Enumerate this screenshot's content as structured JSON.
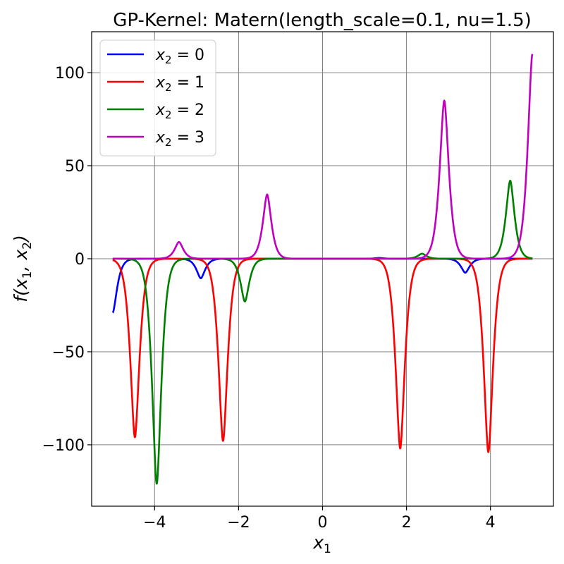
{
  "chart_data": {
    "type": "line",
    "title": "GP-Kernel: Matern(length_scale=0.1, nu=1.5)",
    "xlabel": {
      "base": "x",
      "sub": "1"
    },
    "ylabel": {
      "prefix": "f(x",
      "sub1": "1",
      "mid": ", x",
      "sub2": "2",
      "suffix": ")"
    },
    "xlim": [
      -5.5,
      5.5
    ],
    "ylim": [
      -133,
      122
    ],
    "xticks": [
      -4,
      -2,
      0,
      2,
      4
    ],
    "xtick_labels": [
      "−4",
      "−2",
      "0",
      "2",
      "4"
    ],
    "yticks": [
      -100,
      -50,
      0,
      50,
      100
    ],
    "ytick_labels": [
      "−100",
      "−50",
      "0",
      "50",
      "100"
    ],
    "grid": true,
    "legend_position": "top-left",
    "x_domain": [
      -5,
      5
    ],
    "series": [
      {
        "name": "x₂ = 0",
        "legend": {
          "base": "x",
          "sub": "2",
          "rest": " = 0"
        },
        "color": "#0000ff",
        "peaks": [
          {
            "x": -5.0,
            "y": -29,
            "width": 0.07
          },
          {
            "x": -2.9,
            "y": -10.5,
            "width": 0.07
          },
          {
            "x": 3.4,
            "y": -7.5,
            "width": 0.07
          },
          {
            "x": 1.35,
            "y": 0.4,
            "width": 0.07
          }
        ]
      },
      {
        "name": "x₂ = 1",
        "legend": {
          "base": "x",
          "sub": "2",
          "rest": " = 1"
        },
        "color": "#ff0000",
        "peaks": [
          {
            "x": -4.47,
            "y": -96,
            "width": 0.075
          },
          {
            "x": -2.37,
            "y": -98,
            "width": 0.075
          },
          {
            "x": 1.85,
            "y": -102,
            "width": 0.075
          },
          {
            "x": 3.95,
            "y": -104,
            "width": 0.075
          }
        ]
      },
      {
        "name": "x₂ = 2",
        "legend": {
          "base": "x",
          "sub": "2",
          "rest": " = 2"
        },
        "color": "#008000",
        "peaks": [
          {
            "x": -3.95,
            "y": -121,
            "width": 0.075
          },
          {
            "x": -1.85,
            "y": -23,
            "width": 0.07
          },
          {
            "x": 2.37,
            "y": 2.7,
            "width": 0.07
          },
          {
            "x": 4.47,
            "y": 42,
            "width": 0.07
          }
        ]
      },
      {
        "name": "x₂ = 3",
        "legend": {
          "base": "x",
          "sub": "2",
          "rest": " = 3"
        },
        "color": "#bf00bf",
        "peaks": [
          {
            "x": -3.42,
            "y": 9,
            "width": 0.07
          },
          {
            "x": -1.32,
            "y": 34.5,
            "width": 0.07
          },
          {
            "x": 2.9,
            "y": 85,
            "width": 0.075
          },
          {
            "x": 5.0,
            "y": 110,
            "width": 0.075
          }
        ]
      }
    ]
  }
}
